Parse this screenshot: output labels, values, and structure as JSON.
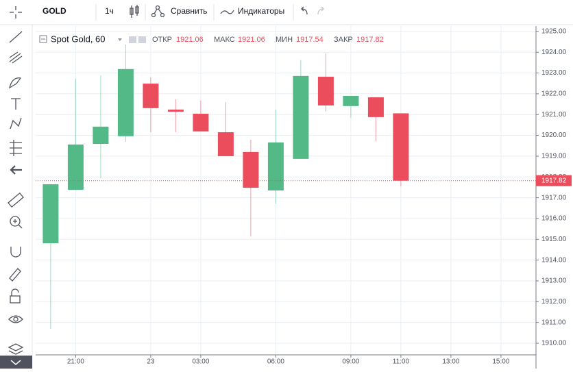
{
  "toolbar": {
    "symbol": "GOLD",
    "interval": "1ч",
    "compare": "Сравнить",
    "indicators": "Индикаторы"
  },
  "chart_data": {
    "type": "candlestick",
    "title": "Spot Gold, 60",
    "legend": {
      "open_label": "ОТКР",
      "open": 1921.06,
      "high_label": "МАКС",
      "high": 1921.06,
      "low_label": "МИН",
      "low": 1917.54,
      "close_label": "ЗАКР",
      "close": 1917.82
    },
    "x": [
      0,
      1,
      2,
      3,
      4,
      5,
      6,
      7,
      8,
      9,
      10,
      11,
      12,
      13,
      14
    ],
    "open": [
      1914.81,
      1917.38,
      1919.59,
      1919.96,
      1922.49,
      1921.24,
      1921.04,
      1920.15,
      1919.2,
      1917.35,
      1918.87,
      1922.82,
      1921.41,
      1921.83,
      1921.06
    ],
    "high": [
      1917.65,
      1922.73,
      1922.89,
      1924.37,
      1922.79,
      1921.74,
      1921.67,
      1921.6,
      1919.79,
      1921.24,
      1923.62,
      1923.94,
      1921.9,
      1921.83,
      1921.06
    ],
    "low": [
      1910.69,
      1917.38,
      1917.94,
      1919.69,
      1920.15,
      1920.15,
      1920.19,
      1919.0,
      1915.14,
      1916.72,
      1918.87,
      1921.14,
      1920.85,
      1919.72,
      1917.54
    ],
    "close": [
      1917.65,
      1919.56,
      1920.42,
      1923.19,
      1921.31,
      1921.14,
      1920.19,
      1919.0,
      1917.48,
      1919.66,
      1922.86,
      1921.44,
      1921.9,
      1920.88,
      1917.82
    ],
    "up_color": "#53b987",
    "down_color": "#eb4d5c",
    "last_price": 1917.82,
    "xlim": [
      -0.6,
      19.4
    ],
    "xticks": [
      {
        "value": 1,
        "label": "21:00"
      },
      {
        "value": 4,
        "label": "23"
      },
      {
        "value": 6,
        "label": "03:00"
      },
      {
        "value": 9,
        "label": "06:00"
      },
      {
        "value": 12,
        "label": "09:00"
      },
      {
        "value": 14,
        "label": "11:00"
      },
      {
        "value": 16,
        "label": "13:00"
      },
      {
        "value": 18,
        "label": "15:00"
      }
    ],
    "ylim": [
      1909.44,
      1925.26
    ],
    "yticks": [
      {
        "value": 1910,
        "label": "1910.00"
      },
      {
        "value": 1911,
        "label": "1911.00"
      },
      {
        "value": 1912,
        "label": "1912.00"
      },
      {
        "value": 1913,
        "label": "1913.00"
      },
      {
        "value": 1914,
        "label": "1914.00"
      },
      {
        "value": 1915,
        "label": "1915.00"
      },
      {
        "value": 1916,
        "label": "1916.00"
      },
      {
        "value": 1917,
        "label": "1917.00"
      },
      {
        "value": 1918,
        "label": "1918.00"
      },
      {
        "value": 1919,
        "label": "1919.00"
      },
      {
        "value": 1920,
        "label": "1920.00"
      },
      {
        "value": 1921,
        "label": "1921.00"
      },
      {
        "value": 1922,
        "label": "1922.00"
      },
      {
        "value": 1923,
        "label": "1923.00"
      },
      {
        "value": 1924,
        "label": "1924.00"
      },
      {
        "value": 1925,
        "label": "1925.00"
      }
    ],
    "grid": true
  }
}
